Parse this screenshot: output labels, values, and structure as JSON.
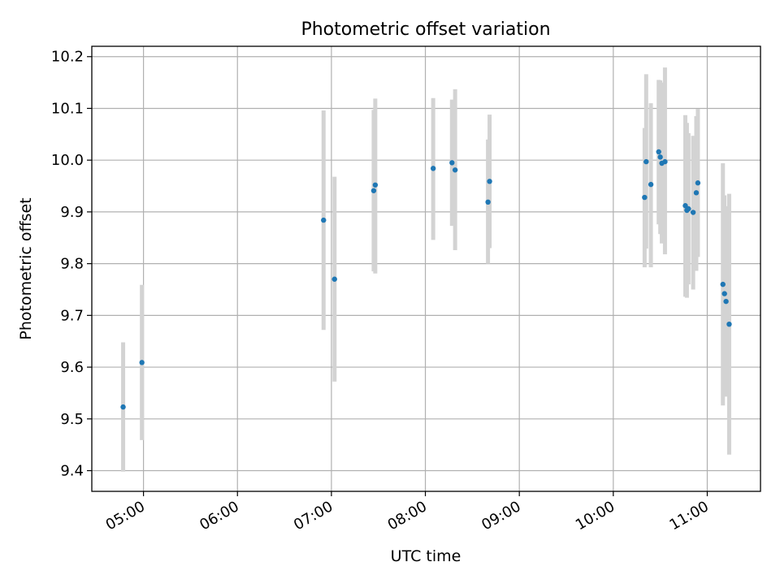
{
  "chart_data": {
    "type": "scatter",
    "title": "Photometric offset variation",
    "xlabel": "UTC time",
    "ylabel": "Photometric offset",
    "x_ticks": [
      "05:00",
      "06:00",
      "07:00",
      "08:00",
      "09:00",
      "10:00",
      "11:00"
    ],
    "y_ticks": [
      "9.4",
      "9.5",
      "9.6",
      "9.7",
      "9.8",
      "9.9",
      "10.0",
      "10.1",
      "10.2"
    ],
    "xlim": [
      "04:27",
      "11:34"
    ],
    "ylim": [
      9.36,
      10.22
    ],
    "grid": true,
    "marker_color": "#1f77b4",
    "errorbar_color": "#d3d3d3",
    "points": [
      {
        "x": "04:47",
        "y": 9.523,
        "low": 9.398,
        "high": 9.648
      },
      {
        "x": "04:59",
        "y": 9.609,
        "low": 9.459,
        "high": 9.759
      },
      {
        "x": "06:55",
        "y": 9.884,
        "low": 9.672,
        "high": 10.096
      },
      {
        "x": "07:02",
        "y": 9.77,
        "low": 9.572,
        "high": 9.968
      },
      {
        "x": "07:27",
        "y": 9.941,
        "low": 9.785,
        "high": 10.097
      },
      {
        "x": "07:28",
        "y": 9.952,
        "low": 9.781,
        "high": 10.119
      },
      {
        "x": "08:05",
        "y": 9.984,
        "low": 9.846,
        "high": 10.12
      },
      {
        "x": "08:17",
        "y": 9.995,
        "low": 9.873,
        "high": 10.117
      },
      {
        "x": "08:19",
        "y": 9.981,
        "low": 9.826,
        "high": 10.137
      },
      {
        "x": "08:40",
        "y": 9.919,
        "low": 9.8,
        "high": 10.04
      },
      {
        "x": "08:41",
        "y": 9.959,
        "low": 9.83,
        "high": 10.088
      },
      {
        "x": "10:20",
        "y": 9.928,
        "low": 9.793,
        "high": 10.062
      },
      {
        "x": "10:21",
        "y": 9.997,
        "low": 9.829,
        "high": 10.166
      },
      {
        "x": "10:24",
        "y": 9.953,
        "low": 9.793,
        "high": 10.11
      },
      {
        "x": "10:29",
        "y": 10.016,
        "low": 9.876,
        "high": 10.155
      },
      {
        "x": "10:30",
        "y": 10.006,
        "low": 9.857,
        "high": 10.154
      },
      {
        "x": "10:31",
        "y": 9.994,
        "low": 9.839,
        "high": 10.15
      },
      {
        "x": "10:33",
        "y": 9.997,
        "low": 9.818,
        "high": 10.179
      },
      {
        "x": "10:46",
        "y": 9.912,
        "low": 9.736,
        "high": 10.087
      },
      {
        "x": "10:47",
        "y": 9.903,
        "low": 9.734,
        "high": 10.072
      },
      {
        "x": "10:48",
        "y": 9.906,
        "low": 9.76,
        "high": 10.052
      },
      {
        "x": "10:51",
        "y": 9.899,
        "low": 9.75,
        "high": 10.047
      },
      {
        "x": "10:53",
        "y": 9.937,
        "low": 9.786,
        "high": 10.085
      },
      {
        "x": "10:54",
        "y": 9.956,
        "low": 9.813,
        "high": 10.099
      },
      {
        "x": "11:10",
        "y": 9.76,
        "low": 9.526,
        "high": 9.994
      },
      {
        "x": "11:11",
        "y": 9.742,
        "low": 9.552,
        "high": 9.932
      },
      {
        "x": "11:12",
        "y": 9.727,
        "low": 9.543,
        "high": 9.911
      },
      {
        "x": "11:14",
        "y": 9.683,
        "low": 9.431,
        "high": 9.935
      }
    ]
  }
}
